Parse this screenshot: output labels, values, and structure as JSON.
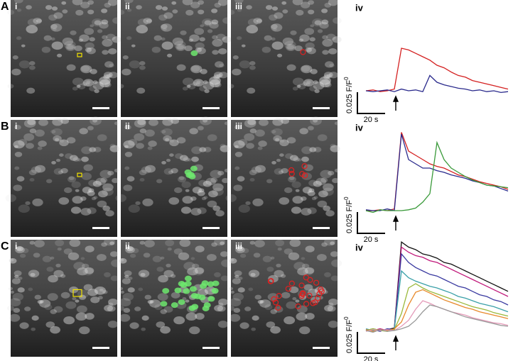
{
  "rows": [
    {
      "label": "A",
      "panels": [
        "i",
        "ii",
        "iii"
      ],
      "trace_label": "iv",
      "scale_y_value": 0.025,
      "scale_y_label": "0.025 F/F",
      "scale_y_sub": "0",
      "scale_x_value": 20,
      "scale_x_label": "20 s",
      "stimulus_t": 21,
      "t": [
        0,
        5,
        10,
        15,
        20,
        25,
        30,
        35,
        40,
        45,
        50,
        55,
        60,
        65,
        70,
        75,
        80,
        85,
        90,
        95,
        100
      ],
      "series": [
        {
          "color": "#d42020",
          "values": [
            0,
            0.001,
            -0.001,
            0,
            0.002,
            0.05,
            0.048,
            0.044,
            0.04,
            0.036,
            0.03,
            0.027,
            0.022,
            0.018,
            0.016,
            0.012,
            0.01,
            0.008,
            0.006,
            0.004,
            0.002
          ]
        },
        {
          "color": "#2a2a8c",
          "values": [
            0,
            -0.001,
            0,
            0.001,
            -0.001,
            0.002,
            0,
            0.001,
            -0.001,
            0.018,
            0.01,
            0.007,
            0.005,
            0.003,
            0.002,
            0,
            0.001,
            -0.001,
            0,
            -0.002,
            -0.001
          ]
        }
      ]
    },
    {
      "label": "B",
      "panels": [
        "i",
        "ii",
        "iii"
      ],
      "trace_label": "iv",
      "scale_y_value": 0.025,
      "scale_y_label": "0.025 F/F",
      "scale_y_sub": "0",
      "scale_x_value": 20,
      "scale_x_label": "20 s",
      "stimulus_t": 21,
      "t": [
        0,
        5,
        10,
        15,
        20,
        25,
        30,
        35,
        40,
        45,
        50,
        55,
        60,
        65,
        70,
        75,
        80,
        85,
        90,
        95,
        100
      ],
      "series": [
        {
          "color": "#d42020",
          "values": [
            0,
            0,
            0.001,
            0,
            0.002,
            0.092,
            0.07,
            0.065,
            0.06,
            0.055,
            0.052,
            0.05,
            0.046,
            0.042,
            0.04,
            0.037,
            0.034,
            0.032,
            0.03,
            0.028,
            0.025
          ]
        },
        {
          "color": "#2a2a8c",
          "values": [
            0.001,
            0,
            0,
            0.002,
            0,
            0.09,
            0.06,
            0.055,
            0.05,
            0.05,
            0.047,
            0.045,
            0.042,
            0.04,
            0.038,
            0.035,
            0.033,
            0.03,
            0.029,
            0.026,
            0.023
          ]
        },
        {
          "color": "#3a9a3a",
          "values": [
            0,
            -0.002,
            0.001,
            0,
            0,
            0,
            0.001,
            0.003,
            0.01,
            0.02,
            0.08,
            0.06,
            0.05,
            0.045,
            0.04,
            0.036,
            0.033,
            0.03,
            0.029,
            0.028,
            0.027
          ]
        }
      ]
    },
    {
      "label": "C",
      "panels": [
        "i",
        "ii",
        "iii"
      ],
      "trace_label": "iv",
      "scale_y_value": 0.025,
      "scale_y_label": "0.025 F/F",
      "scale_y_sub": "0",
      "scale_x_value": 20,
      "scale_x_label": "20 s",
      "stimulus_t": 21,
      "t": [
        0,
        5,
        10,
        15,
        20,
        25,
        30,
        35,
        40,
        45,
        50,
        55,
        60,
        65,
        70,
        75,
        80,
        85,
        90,
        95,
        100
      ],
      "series": [
        {
          "color": "#111111",
          "values": [
            0,
            0.002,
            0,
            0.001,
            0.003,
            0.104,
            0.098,
            0.095,
            0.09,
            0.088,
            0.085,
            0.08,
            0.078,
            0.074,
            0.07,
            0.066,
            0.062,
            0.058,
            0.054,
            0.05,
            0.046
          ]
        },
        {
          "color": "#c0187a",
          "values": [
            0.001,
            0,
            0.002,
            0,
            0.002,
            0.098,
            0.092,
            0.088,
            0.086,
            0.082,
            0.08,
            0.076,
            0.072,
            0.068,
            0.064,
            0.06,
            0.056,
            0.052,
            0.048,
            0.044,
            0.04
          ]
        },
        {
          "color": "#3a3aa0",
          "values": [
            0,
            0.001,
            -0.001,
            0.002,
            0.001,
            0.09,
            0.08,
            0.074,
            0.07,
            0.066,
            0.064,
            0.06,
            0.056,
            0.052,
            0.05,
            0.046,
            0.042,
            0.04,
            0.036,
            0.034,
            0.03
          ]
        },
        {
          "color": "#3aa0a8",
          "values": [
            0.002,
            0,
            0.001,
            0,
            0.002,
            0.07,
            0.062,
            0.058,
            0.055,
            0.052,
            0.05,
            0.047,
            0.044,
            0.04,
            0.038,
            0.035,
            0.032,
            0.03,
            0.028,
            0.025,
            0.022
          ]
        },
        {
          "color": "#9ab83a",
          "values": [
            0,
            0.002,
            0,
            -0.001,
            0.001,
            0.02,
            0.05,
            0.055,
            0.05,
            0.046,
            0.043,
            0.04,
            0.037,
            0.034,
            0.031,
            0.028,
            0.026,
            0.024,
            0.021,
            0.019,
            0.017
          ]
        },
        {
          "color": "#e8892a",
          "values": [
            0.001,
            -0.001,
            0.001,
            0,
            0.002,
            0.01,
            0.03,
            0.045,
            0.048,
            0.044,
            0.04,
            0.036,
            0.033,
            0.03,
            0.027,
            0.025,
            0.022,
            0.02,
            0.018,
            0.016,
            0.014
          ]
        },
        {
          "color": "#e49ab8",
          "values": [
            -0.001,
            0.001,
            0,
            0.001,
            0,
            0.005,
            0.012,
            0.025,
            0.035,
            0.032,
            0.028,
            0.025,
            0.022,
            0.02,
            0.018,
            0.015,
            0.013,
            0.011,
            0.009,
            0.008,
            0.006
          ]
        },
        {
          "color": "#999999",
          "values": [
            0,
            -0.002,
            0.001,
            -0.001,
            0,
            0.002,
            0.005,
            0.012,
            0.022,
            0.03,
            0.028,
            0.025,
            0.022,
            0.019,
            0.016,
            0.014,
            0.012,
            0.01,
            0.008,
            0.006,
            0.005
          ]
        }
      ]
    }
  ]
}
